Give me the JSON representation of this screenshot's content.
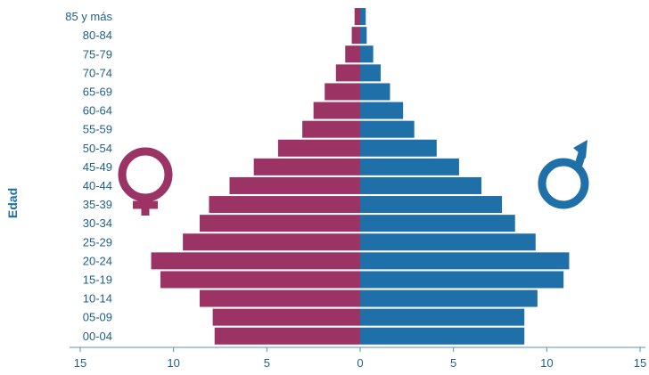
{
  "chart_data": {
    "type": "bar",
    "orientation": "horizontal",
    "layout": "population-pyramid",
    "title": "",
    "ylabel": "Edad",
    "xlabel": "",
    "xlim": [
      -15,
      15
    ],
    "x_ticks": [
      {
        "value": -15,
        "label": "15"
      },
      {
        "value": -10,
        "label": "10"
      },
      {
        "value": -5,
        "label": "5"
      },
      {
        "value": 0,
        "label": "0"
      },
      {
        "value": 5,
        "label": "5"
      },
      {
        "value": 10,
        "label": "10"
      },
      {
        "value": 15,
        "label": "15"
      }
    ],
    "categories": [
      "00-04",
      "05-09",
      "10-14",
      "15-19",
      "20-24",
      "25-29",
      "30-34",
      "35-39",
      "40-44",
      "45-49",
      "50-54",
      "55-59",
      "60-64",
      "65-69",
      "70-74",
      "75-79",
      "80-84",
      "85 y más"
    ],
    "series": [
      {
        "symbol": "female-symbol-icon",
        "side": "left",
        "color": "#9b3464",
        "values": [
          7.8,
          7.9,
          8.6,
          10.7,
          11.2,
          9.5,
          8.6,
          8.1,
          7.0,
          5.7,
          4.4,
          3.1,
          2.5,
          1.9,
          1.3,
          0.8,
          0.45,
          0.3
        ]
      },
      {
        "symbol": "male-symbol-icon",
        "side": "right",
        "color": "#1f6fa8",
        "values": [
          8.8,
          8.8,
          9.5,
          10.9,
          11.2,
          9.4,
          8.3,
          7.6,
          6.5,
          5.3,
          4.1,
          2.9,
          2.3,
          1.6,
          1.1,
          0.7,
          0.35,
          0.3
        ]
      }
    ],
    "grid": false,
    "legend": "none",
    "colors": {
      "female": "#9b3464",
      "male": "#1f6fa8",
      "axis": "#5a8fbd",
      "labels": "#1f5f8b"
    }
  }
}
